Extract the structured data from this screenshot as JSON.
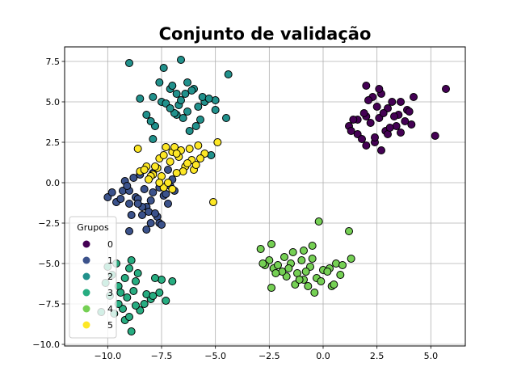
{
  "chart_data": {
    "type": "scatter",
    "title": "Conjunto de validação",
    "xlabel": "",
    "ylabel": "",
    "xlim": [
      -12.0,
      6.6
    ],
    "ylim": [
      -10.1,
      8.4
    ],
    "xticks": [
      -10.0,
      -7.5,
      -5.0,
      -2.5,
      0.0,
      2.5,
      5.0
    ],
    "yticks": [
      -10.0,
      -7.5,
      -5.0,
      -2.5,
      0.0,
      2.5,
      5.0,
      7.5
    ],
    "xtick_labels": [
      "−10.0",
      "−7.5",
      "−5.0",
      "−2.5",
      "0.0",
      "2.5",
      "5.0"
    ],
    "ytick_labels": [
      "−10.0",
      "−7.5",
      "−5.0",
      "−2.5",
      "0.0",
      "2.5",
      "5.0",
      "7.5"
    ],
    "grid": true,
    "legend": {
      "title": "Grupos",
      "placement": "lower-left"
    },
    "series": [
      {
        "name": "0",
        "color": "#440154",
        "points": [
          [
            2.0,
            6.0
          ],
          [
            2.7,
            5.5
          ],
          [
            2.3,
            5.3
          ],
          [
            3.2,
            5.0
          ],
          [
            3.9,
            4.5
          ],
          [
            3.5,
            4.2
          ],
          [
            2.0,
            4.1
          ],
          [
            1.6,
            3.9
          ],
          [
            2.6,
            4.0
          ],
          [
            3.4,
            3.5
          ],
          [
            2.9,
            3.2
          ],
          [
            1.2,
            3.5
          ],
          [
            1.6,
            3.0
          ],
          [
            2.4,
            2.5
          ],
          [
            2.0,
            2.3
          ],
          [
            2.7,
            2.0
          ],
          [
            3.6,
            3.1
          ],
          [
            4.1,
            3.6
          ],
          [
            5.2,
            2.9
          ],
          [
            5.7,
            5.8
          ],
          [
            4.2,
            5.3
          ],
          [
            3.0,
            4.6
          ],
          [
            2.5,
            4.7
          ],
          [
            3.8,
            3.8
          ],
          [
            2.2,
            3.7
          ],
          [
            1.4,
            3.9
          ],
          [
            3.0,
            3.0
          ],
          [
            1.8,
            2.7
          ],
          [
            2.8,
            4.3
          ],
          [
            2.1,
            5.1
          ],
          [
            4.0,
            4.4
          ],
          [
            3.6,
            5.0
          ],
          [
            1.9,
            4.3
          ],
          [
            2.4,
            2.8
          ],
          [
            3.3,
            4.1
          ],
          [
            1.3,
            3.2
          ],
          [
            2.6,
            5.8
          ],
          [
            3.1,
            3.4
          ]
        ]
      },
      {
        "name": "1",
        "color": "#3b528b",
        "points": [
          [
            -10.0,
            -0.9
          ],
          [
            -9.6,
            -1.2
          ],
          [
            -9.3,
            -0.5
          ],
          [
            -9.0,
            -1.3
          ],
          [
            -8.7,
            -0.9
          ],
          [
            -8.4,
            -2.0
          ],
          [
            -8.2,
            -1.5
          ],
          [
            -7.9,
            -0.6
          ],
          [
            -7.6,
            -0.3
          ],
          [
            -7.4,
            -0.8
          ],
          [
            -7.1,
            -0.2
          ],
          [
            -7.7,
            -2.1
          ],
          [
            -8.0,
            -1.1
          ],
          [
            -8.6,
            -1.0
          ],
          [
            -9.0,
            -3.0
          ],
          [
            -8.0,
            -2.5
          ],
          [
            -7.6,
            -2.5
          ],
          [
            -8.3,
            -0.4
          ],
          [
            -8.8,
            0.3
          ],
          [
            -9.4,
            -1.0
          ],
          [
            -9.2,
            0.1
          ],
          [
            -8.5,
            0.5
          ],
          [
            -7.2,
            0.8
          ],
          [
            -6.9,
            -0.5
          ],
          [
            -8.1,
            -1.8
          ],
          [
            -7.5,
            -2.6
          ],
          [
            -7.0,
            0.2
          ],
          [
            -9.8,
            -0.6
          ],
          [
            -9.0,
            -0.5
          ],
          [
            -8.4,
            -1.5
          ],
          [
            -7.8,
            -1.9
          ],
          [
            -7.2,
            -1.3
          ],
          [
            -8.9,
            -2.0
          ],
          [
            -9.1,
            -0.2
          ],
          [
            -8.2,
            -2.9
          ],
          [
            -7.3,
            -0.7
          ],
          [
            -8.6,
            -1.3
          ],
          [
            -7.9,
            0.6
          ]
        ]
      },
      {
        "name": "2",
        "color": "#21918c",
        "points": [
          [
            -9.0,
            7.4
          ],
          [
            -8.5,
            5.2
          ],
          [
            -7.9,
            5.3
          ],
          [
            -7.5,
            5.0
          ],
          [
            -7.1,
            5.8
          ],
          [
            -6.8,
            5.5
          ],
          [
            -6.3,
            6.2
          ],
          [
            -6.0,
            5.8
          ],
          [
            -5.5,
            5.0
          ],
          [
            -5.0,
            4.5
          ],
          [
            -4.4,
            6.7
          ],
          [
            -4.5,
            4.0
          ],
          [
            -6.6,
            7.6
          ],
          [
            -6.7,
            4.8
          ],
          [
            -6.5,
            4.0
          ],
          [
            -6.2,
            3.2
          ],
          [
            -5.9,
            3.5
          ],
          [
            -7.8,
            3.5
          ],
          [
            -8.0,
            3.8
          ],
          [
            -6.8,
            4.2
          ],
          [
            -7.3,
            4.9
          ],
          [
            -7.4,
            7.1
          ],
          [
            -5.2,
            1.7
          ],
          [
            -5.0,
            5.1
          ],
          [
            -5.6,
            5.3
          ],
          [
            -6.1,
            5.7
          ],
          [
            -7.0,
            6.0
          ],
          [
            -6.9,
            4.3
          ],
          [
            -7.1,
            4.6
          ],
          [
            -6.4,
            5.5
          ],
          [
            -5.8,
            4.7
          ],
          [
            -8.2,
            4.2
          ],
          [
            -7.6,
            6.2
          ],
          [
            -5.7,
            3.9
          ],
          [
            -6.6,
            5.1
          ],
          [
            -7.9,
            2.7
          ],
          [
            -5.3,
            5.2
          ],
          [
            -6.3,
            4.4
          ]
        ]
      },
      {
        "name": "3",
        "color": "#27ad81",
        "points": [
          [
            -10.1,
            -6.2
          ],
          [
            -9.8,
            -5.7
          ],
          [
            -9.5,
            -6.4
          ],
          [
            -9.1,
            -7.1
          ],
          [
            -8.8,
            -6.7
          ],
          [
            -9.0,
            -5.3
          ],
          [
            -8.7,
            -6.1
          ],
          [
            -8.3,
            -7.5
          ],
          [
            -8.0,
            -7.2
          ],
          [
            -7.6,
            -6.8
          ],
          [
            -7.3,
            -7.3
          ],
          [
            -7.5,
            -6.0
          ],
          [
            -7.0,
            -6.1
          ],
          [
            -8.9,
            -4.8
          ],
          [
            -9.6,
            -5.0
          ],
          [
            -9.3,
            -7.8
          ],
          [
            -9.2,
            -8.5
          ],
          [
            -8.9,
            -9.2
          ],
          [
            -10.3,
            -8.0
          ],
          [
            -9.7,
            -8.1
          ],
          [
            -8.5,
            -7.9
          ],
          [
            -7.8,
            -5.9
          ],
          [
            -9.9,
            -7.0
          ],
          [
            -9.4,
            -6.8
          ],
          [
            -8.6,
            -5.6
          ],
          [
            -9.0,
            -8.3
          ],
          [
            -8.2,
            -6.9
          ],
          [
            -10.0,
            -5.2
          ],
          [
            -7.9,
            -7.0
          ],
          [
            -9.5,
            -7.5
          ],
          [
            -8.7,
            -7.6
          ],
          [
            -9.2,
            -5.9
          ]
        ]
      },
      {
        "name": "4",
        "color": "#75d054",
        "points": [
          [
            -2.9,
            -4.1
          ],
          [
            -2.5,
            -4.8
          ],
          [
            -2.3,
            -5.3
          ],
          [
            -2.1,
            -5.1
          ],
          [
            -1.8,
            -4.6
          ],
          [
            -1.5,
            -5.0
          ],
          [
            -1.2,
            -5.6
          ],
          [
            -0.9,
            -6.0
          ],
          [
            -0.6,
            -5.2
          ],
          [
            -0.3,
            -5.9
          ],
          [
            0.0,
            -5.4
          ],
          [
            0.3,
            -5.3
          ],
          [
            0.6,
            -5.0
          ],
          [
            0.9,
            -5.1
          ],
          [
            1.2,
            -3.0
          ],
          [
            1.3,
            -4.7
          ],
          [
            -0.2,
            -2.4
          ],
          [
            -0.9,
            -4.2
          ],
          [
            -0.5,
            -3.9
          ],
          [
            -1.0,
            -4.8
          ],
          [
            -1.7,
            -5.8
          ],
          [
            -1.3,
            -6.3
          ],
          [
            -0.7,
            -6.4
          ],
          [
            -0.4,
            -6.8
          ],
          [
            0.4,
            -6.4
          ],
          [
            0.5,
            -6.3
          ],
          [
            -2.4,
            -3.8
          ],
          [
            -2.7,
            -5.1
          ],
          [
            -2.4,
            -6.5
          ],
          [
            -1.9,
            -5.5
          ],
          [
            -1.4,
            -4.3
          ],
          [
            -0.8,
            -5.5
          ],
          [
            -0.1,
            -6.1
          ],
          [
            0.2,
            -5.5
          ],
          [
            -2.2,
            -5.6
          ],
          [
            -1.1,
            -6.0
          ],
          [
            -0.5,
            -4.7
          ],
          [
            -1.6,
            -5.3
          ],
          [
            0.8,
            -5.7
          ],
          [
            -2.8,
            -5.0
          ]
        ]
      },
      {
        "name": "5",
        "color": "#fde725",
        "points": [
          [
            -8.6,
            2.1
          ],
          [
            -8.2,
            1.0
          ],
          [
            -7.9,
            0.5
          ],
          [
            -7.6,
            1.5
          ],
          [
            -7.3,
            2.2
          ],
          [
            -7.0,
            1.9
          ],
          [
            -6.7,
            1.6
          ],
          [
            -6.4,
            1.0
          ],
          [
            -6.1,
            1.4
          ],
          [
            -5.8,
            2.3
          ],
          [
            -5.5,
            1.8
          ],
          [
            -4.9,
            2.5
          ],
          [
            -5.1,
            -1.2
          ],
          [
            -7.4,
            -0.3
          ],
          [
            -8.5,
            0.7
          ],
          [
            -8.0,
            0.4
          ],
          [
            -7.7,
            0.9
          ],
          [
            -7.5,
            0.4
          ],
          [
            -7.2,
            0.0
          ],
          [
            -6.9,
            2.2
          ],
          [
            -6.6,
            2.0
          ],
          [
            -6.3,
            1.2
          ],
          [
            -6.0,
            0.8
          ],
          [
            -7.8,
            1.0
          ],
          [
            -8.1,
            0.2
          ],
          [
            -7.1,
            1.3
          ],
          [
            -6.8,
            1.8
          ],
          [
            -6.5,
            0.7
          ],
          [
            -5.9,
            1.1
          ],
          [
            -7.4,
            1.7
          ],
          [
            -8.3,
            0.8
          ],
          [
            -6.2,
            2.1
          ],
          [
            -7.6,
            0.0
          ],
          [
            -6.8,
            0.6
          ],
          [
            -5.7,
            1.5
          ],
          [
            -7.0,
            -0.4
          ]
        ]
      }
    ]
  }
}
